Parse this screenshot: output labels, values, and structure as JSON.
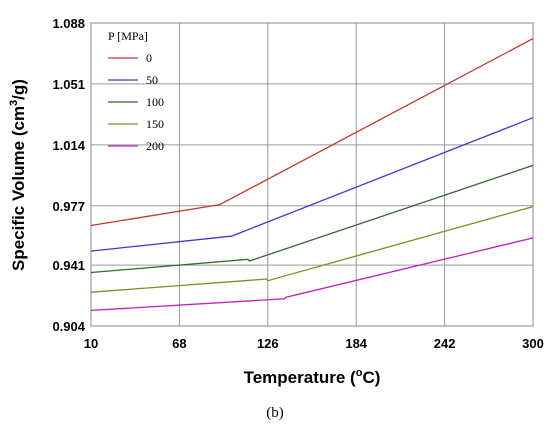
{
  "chart_data": {
    "type": "line",
    "xlabel": "Temperature (",
    "xlabel_sup": "o",
    "xlabel_end": "C)",
    "ylabel": "Specific Volume (cm",
    "ylabel_sup": "3",
    "ylabel_end": "/g)",
    "xlim": [
      10,
      300
    ],
    "ylim": [
      0.904,
      1.088
    ],
    "x_ticks": [
      10,
      68,
      126,
      184,
      242,
      300
    ],
    "x_tick_labels": [
      "10",
      "68",
      "126",
      "184",
      "242",
      "300"
    ],
    "y_ticks": [
      0.904,
      0.941,
      0.977,
      1.014,
      1.051,
      1.088
    ],
    "y_tick_labels": [
      "0.904",
      "0.941",
      "0.977",
      "1.014",
      "1.051",
      "1.088"
    ],
    "grid": true,
    "legend_title": "P [MPa]",
    "legend_position": "top-left",
    "series": [
      {
        "name": "0",
        "color": "#c0392b",
        "points": [
          [
            10,
            0.965
          ],
          [
            93,
            0.9775
          ],
          [
            94,
            0.9775
          ],
          [
            300,
            1.0785
          ]
        ]
      },
      {
        "name": "50",
        "color": "#3a3ac8",
        "points": [
          [
            10,
            0.9495
          ],
          [
            101,
            0.9585
          ],
          [
            102,
            0.9585
          ],
          [
            300,
            1.0305
          ]
        ]
      },
      {
        "name": "100",
        "color": "#2e6b2e",
        "points": [
          [
            10,
            0.9365
          ],
          [
            113,
            0.9445
          ],
          [
            114,
            0.9435
          ],
          [
            300,
            1.0015
          ]
        ]
      },
      {
        "name": "150",
        "color": "#8a8a2a",
        "points": [
          [
            10,
            0.9245
          ],
          [
            125,
            0.9325
          ],
          [
            126,
            0.9315
          ],
          [
            300,
            0.9765
          ]
        ]
      },
      {
        "name": "200",
        "color": "#c020c0",
        "points": [
          [
            10,
            0.9135
          ],
          [
            137,
            0.9205
          ],
          [
            138,
            0.9215
          ],
          [
            300,
            0.9575
          ]
        ]
      }
    ]
  },
  "caption": "(b)"
}
